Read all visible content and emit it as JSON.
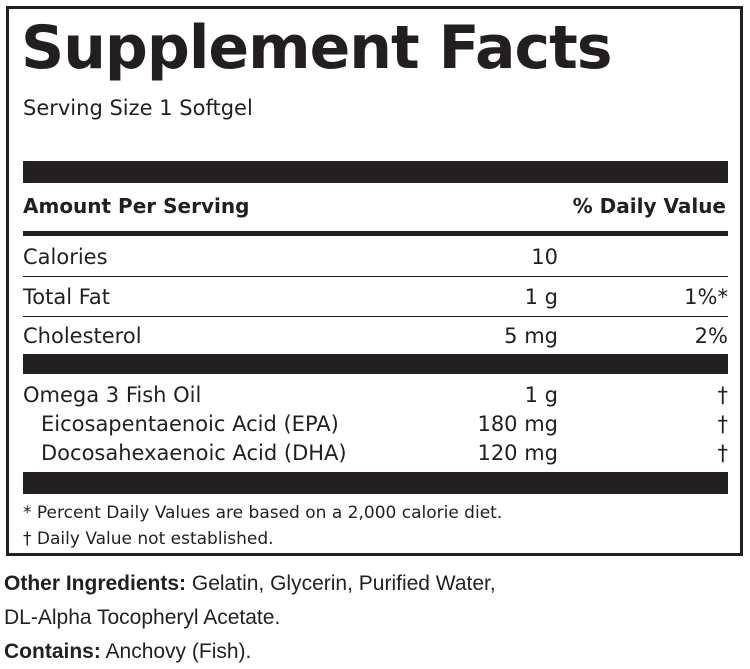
{
  "panel": {
    "title": "Supplement Facts",
    "serving_size": "Serving Size 1 Softgel",
    "header": {
      "amount_per_serving": "Amount Per Serving",
      "daily_value": "% Daily Value"
    },
    "rows": [
      {
        "name": "Calories",
        "amount": "10",
        "dv": ""
      },
      {
        "name": "Total Fat",
        "amount": "1 g",
        "dv": "1%*"
      },
      {
        "name": "Cholesterol",
        "amount": "5 mg",
        "dv": "2%"
      }
    ],
    "omega_rows": [
      {
        "name": "Omega 3 Fish Oil",
        "amount": "1 g",
        "dv": "†"
      },
      {
        "name": "Eicosapentaenoic Acid (EPA)",
        "amount": "180 mg",
        "dv": "†"
      },
      {
        "name": "Docosahexaenoic Acid (DHA)",
        "amount": "120 mg",
        "dv": "†"
      }
    ],
    "footnotes": {
      "percent_dv": "* Percent Daily Values are based on a 2,000 calorie diet.",
      "dagger": "† Daily Value not established."
    }
  },
  "other_ingredients": {
    "label": "Other Ingredients:",
    "line1": "Gelatin, Glycerin, Purified Water,",
    "line2": "DL-Alpha Tocopheryl Acetate."
  },
  "contains": {
    "label": "Contains:",
    "value": "Anchovy (Fish)."
  },
  "colors": {
    "ink": "#231f20",
    "background": "#ffffff"
  }
}
